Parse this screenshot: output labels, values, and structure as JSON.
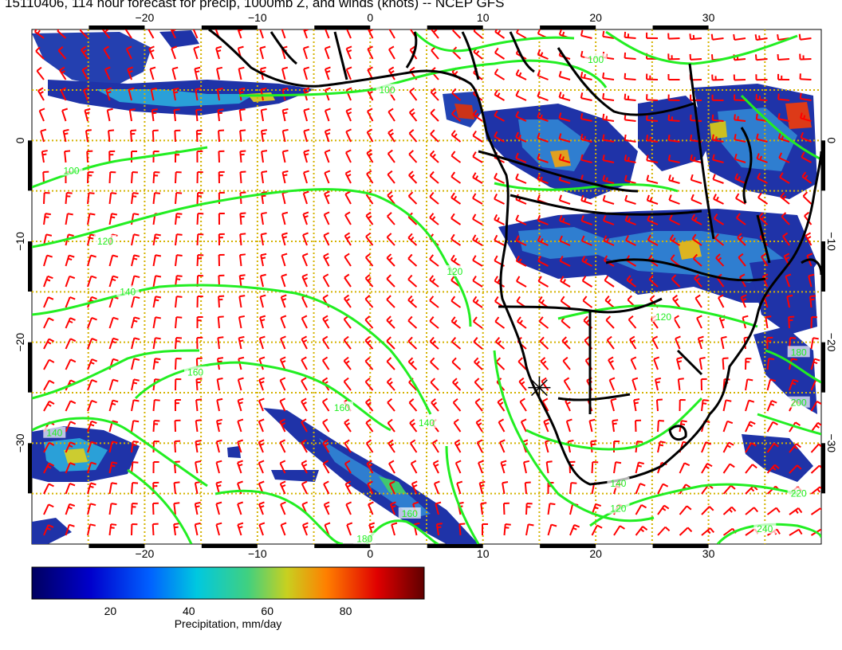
{
  "title": "15110406, 114 hour forecast for precip, 1000mb Z, and winds (knots) -- NCEP GFS",
  "map": {
    "lon_ticks": [
      {
        "value": -20,
        "label": "−20"
      },
      {
        "value": -10,
        "label": "−10"
      },
      {
        "value": 0,
        "label": "0"
      },
      {
        "value": 10,
        "label": "10"
      },
      {
        "value": 20,
        "label": "20"
      },
      {
        "value": 30,
        "label": "30"
      }
    ],
    "lat_ticks": [
      {
        "value": 0,
        "label": "0"
      },
      {
        "value": -10,
        "label": "−10"
      },
      {
        "value": -20,
        "label": "−20"
      },
      {
        "value": -30,
        "label": "−30"
      }
    ],
    "lon_range": [
      -30,
      40
    ],
    "lat_range": [
      11,
      -40
    ],
    "contour_labels": [
      {
        "text": "100",
        "lon": 1.5,
        "lat": 5
      },
      {
        "text": "100",
        "lon": -26.5,
        "lat": -3
      },
      {
        "text": "100",
        "lon": 20,
        "lat": 8
      },
      {
        "text": "120",
        "lon": -23.5,
        "lat": -10
      },
      {
        "text": "120",
        "lon": 7.5,
        "lat": -13
      },
      {
        "text": "140",
        "lon": -21.5,
        "lat": -15
      },
      {
        "text": "140",
        "lon": 5,
        "lat": -28
      },
      {
        "text": "140",
        "lon": -28,
        "lat": -29
      },
      {
        "text": "160",
        "lon": -15.5,
        "lat": -23
      },
      {
        "text": "160",
        "lon": -2.5,
        "lat": -26.5
      },
      {
        "text": "160",
        "lon": 3.5,
        "lat": -37
      },
      {
        "text": "180",
        "lon": -0.5,
        "lat": -39.5
      },
      {
        "text": "180",
        "lon": 38,
        "lat": -21
      },
      {
        "text": "200",
        "lon": 38,
        "lat": -26
      },
      {
        "text": "220",
        "lon": 38,
        "lat": -35
      },
      {
        "text": "240",
        "lon": 35,
        "lat": -38.5
      },
      {
        "text": "140",
        "lon": 22,
        "lat": -34
      },
      {
        "text": "120",
        "lon": 26,
        "lat": -17.5
      },
      {
        "text": "120",
        "lon": 22,
        "lat": -36.5
      }
    ],
    "marker": {
      "lon": 15,
      "lat": -24.5,
      "icon": "asterisk-marker-icon"
    }
  },
  "colorbar": {
    "ticks": [
      {
        "value": 20,
        "label": "20"
      },
      {
        "value": 40,
        "label": "40"
      },
      {
        "value": 60,
        "label": "60"
      },
      {
        "value": 80,
        "label": "80"
      }
    ],
    "range": [
      0,
      100
    ],
    "label": "Precipitation, mm/day"
  },
  "colors": {
    "contour": "#22ee22",
    "wind_barb": "#ff0000",
    "grid": "#d4b200",
    "coastline": "#000000",
    "precip_low": "#1a2a9a",
    "precip_mid": "#22cccc",
    "precip_high": "#dd2211"
  }
}
